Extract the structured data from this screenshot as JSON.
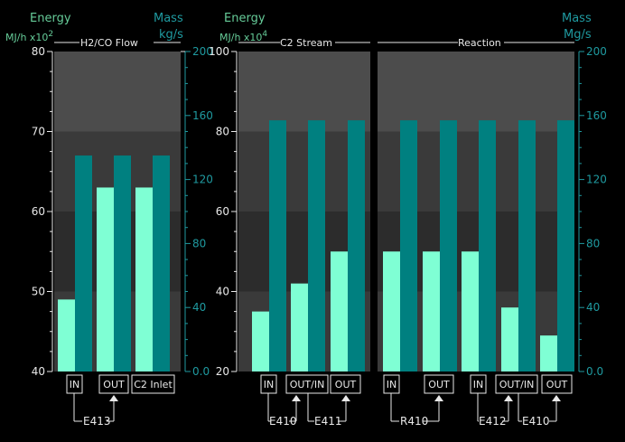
{
  "colors": {
    "energy_bar": "#7fffd4",
    "mass_bar": "#008080",
    "band_light": "#4c4c4c",
    "band_mid": "#3a3a3a",
    "band_dark": "#2c2c2c",
    "energy_text": "#66cc99",
    "mass_text": "#1f9aa0",
    "white_text": "#e8e8e8"
  },
  "left_axis": {
    "title_line1": "Energy",
    "title_line2": "MJ/h x10",
    "exponent": "2",
    "ticks": [
      "80",
      "70",
      "60",
      "50",
      "40"
    ]
  },
  "mid_axis": {
    "title_line1": "Energy",
    "title_line2": "MJ/h x10",
    "exponent": "4",
    "ticks": [
      "100",
      "80",
      "60",
      "40",
      "20"
    ]
  },
  "left_mass_axis": {
    "title_line1": "Mass",
    "title_line2": "kg/s",
    "ticks": [
      "200",
      "160",
      "120",
      "80",
      "40",
      "0.0"
    ]
  },
  "right_mass_axis": {
    "title_line1": "Mass",
    "title_line2": "Mg/s",
    "ticks": [
      "200",
      "160",
      "120",
      "80",
      "40",
      "0.0"
    ]
  },
  "panels": [
    {
      "title": "H2/CO Flow"
    },
    {
      "title": "C2 Stream"
    },
    {
      "title": "Reaction"
    }
  ],
  "chart_data": [
    {
      "type": "bar",
      "title": "H2/CO Flow",
      "ylabel": "Energy MJ/h x10^2",
      "y2label": "Mass kg/s",
      "ylim": [
        40,
        80
      ],
      "y2lim": [
        0,
        200
      ],
      "categories": [
        "IN",
        "OUT",
        "C2 Inlet"
      ],
      "series": [
        {
          "name": "Energy",
          "values": [
            49,
            63,
            63
          ]
        },
        {
          "name": "Mass",
          "values": [
            135,
            135,
            135
          ]
        }
      ]
    },
    {
      "type": "bar",
      "title": "C2 Stream",
      "ylabel": "Energy MJ/h x10^4",
      "ylim": [
        20,
        100
      ],
      "categories": [
        "IN",
        "OUT/IN",
        "OUT"
      ],
      "series": [
        {
          "name": "Energy",
          "values": [
            35,
            42,
            50
          ]
        },
        {
          "name": "Mass",
          "values": [
            157,
            157,
            157
          ]
        }
      ]
    },
    {
      "type": "bar",
      "title": "Reaction",
      "y2label": "Mass Mg/s",
      "y2lim": [
        0,
        200
      ],
      "categories": [
        "IN",
        "OUT",
        "IN",
        "OUT/IN",
        "OUT"
      ],
      "series": [
        {
          "name": "Energy",
          "values": [
            50,
            50,
            50,
            36,
            29
          ]
        },
        {
          "name": "Mass",
          "values": [
            157,
            157,
            157,
            157,
            157
          ]
        }
      ]
    }
  ],
  "buttons": [
    "IN",
    "OUT",
    "C2 Inlet",
    "IN",
    "OUT/IN",
    "OUT",
    "IN",
    "OUT",
    "IN",
    "OUT/IN",
    "OUT"
  ],
  "equipment_tags": [
    "E413",
    "E410",
    "E411",
    "R410",
    "E412",
    "E410"
  ]
}
